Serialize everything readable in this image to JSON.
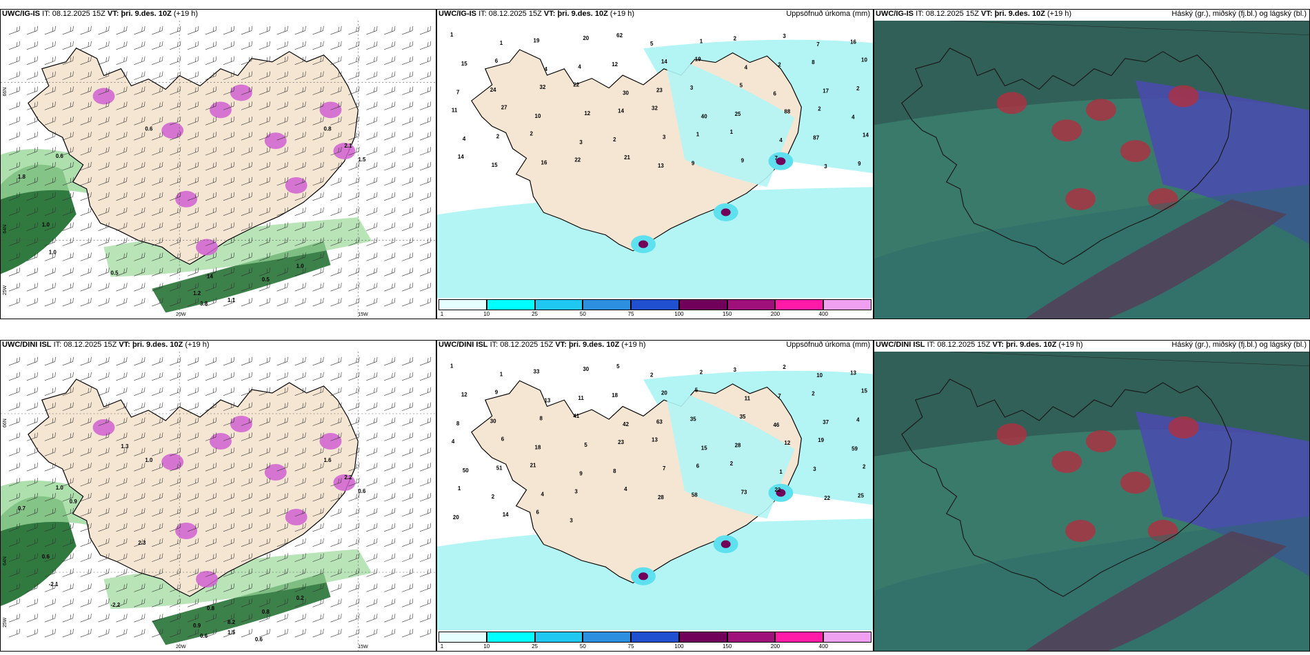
{
  "rows": [
    {
      "model": "UWC/IG-IS",
      "it_label": "IT:",
      "it": "08.12.2025 15Z",
      "vt_label": "VT:",
      "vt": "þri. 9.des. 10Z",
      "lead": "(+19 h)",
      "precip_title": "Uppsöfnuð úrkoma (mm)",
      "cloud_title": "Háský (gr.), miðský (fj.bl.) og lágský (bl.)",
      "left_labels": [
        "0.6",
        "1.0",
        "1.0",
        "0.5",
        "0.5",
        "1.0",
        "1.1",
        "1.2",
        "3.8",
        "1.8",
        "14",
        "0.8",
        "2.1",
        "1.5",
        "0.6"
      ],
      "mid_labels": [
        "1",
        "1",
        "19",
        "20",
        "62",
        "5",
        "1",
        "2",
        "3",
        "7",
        "16",
        "15",
        "6",
        "4",
        "4",
        "12",
        "14",
        "19",
        "4",
        "2",
        "8",
        "10",
        "7",
        "24",
        "32",
        "22",
        "30",
        "23",
        "3",
        "5",
        "6",
        "17",
        "2",
        "11",
        "27",
        "10",
        "12",
        "14",
        "32",
        "40",
        "25",
        "88",
        "2",
        "4",
        "4",
        "2",
        "2",
        "3",
        "2",
        "3",
        "1",
        "1",
        "4",
        "87",
        "14",
        "14",
        "15",
        "16",
        "22",
        "21",
        "13",
        "9",
        "9",
        "7",
        "3",
        "9"
      ],
      "coord_labels": {
        "lat66": "66N",
        "lat64": "64N",
        "lon20": "20W",
        "lon15": "15W",
        "lon25": "25W"
      }
    },
    {
      "model": "UWC/DINI ISL",
      "it_label": "IT:",
      "it": "08.12.2025 15Z",
      "vt_label": "VT:",
      "vt": "þri. 9.des. 10Z",
      "lead": "(+19 h)",
      "precip_title": "Uppsöfnuð úrkoma (mm)",
      "cloud_title": "Háský (gr.), miðský (fj.bl.) og lágský (bl.)",
      "left_labels": [
        "1.0",
        "0.6",
        "-2.1",
        "-2.2",
        "0.8",
        "0.2",
        "1.5",
        "0.9",
        "0.6",
        "0.7",
        "0.8",
        "1.6",
        "2.2",
        "0.6",
        "1.0",
        "0.9",
        "2.3",
        "8.2",
        "0.6",
        "1.3"
      ],
      "mid_labels": [
        "1",
        "1",
        "33",
        "30",
        "5",
        "2",
        "2",
        "3",
        "2",
        "10",
        "13",
        "12",
        "9",
        "13",
        "11",
        "18",
        "20",
        "5",
        "11",
        "7",
        "2",
        "15",
        "8",
        "30",
        "8",
        "41",
        "42",
        "63",
        "35",
        "35",
        "46",
        "37",
        "4",
        "4",
        "6",
        "18",
        "5",
        "23",
        "13",
        "15",
        "28",
        "12",
        "19",
        "59",
        "50",
        "51",
        "21",
        "9",
        "8",
        "7",
        "6",
        "2",
        "1",
        "3",
        "2",
        "1",
        "2",
        "4",
        "3",
        "4",
        "28",
        "58",
        "73",
        "22",
        "22",
        "25",
        "20",
        "14",
        "6",
        "3"
      ],
      "coord_labels": {
        "lat66": "66N",
        "lat64": "64N",
        "lon20": "20W",
        "lon15": "15W",
        "lon25": "25W"
      }
    }
  ],
  "colorbar": {
    "ticks": [
      "1",
      "10",
      "25",
      "50",
      "75",
      "100",
      "150",
      "200",
      "400"
    ],
    "colors": [
      "#e6ffff",
      "#00ffff",
      "#1fc8f0",
      "#2c8fdf",
      "#2050d0",
      "#70005a",
      "#a0107a",
      "#ff1aa8",
      "#f0a0f0"
    ]
  },
  "colors": {
    "land": "#f5e6d3",
    "sea": "#ffffff",
    "precip_light": "#b3f5f5",
    "precip_mid": "#5ee0ee",
    "green_dark": "#1a6b2a",
    "green_light": "#9ad89a",
    "magenta": "#d060d0",
    "cloud_teal": "#3a7a6a",
    "cloud_dark": "#2f5a54",
    "cloud_red": "#b03040",
    "cloud_blue": "#4a4ab0"
  }
}
